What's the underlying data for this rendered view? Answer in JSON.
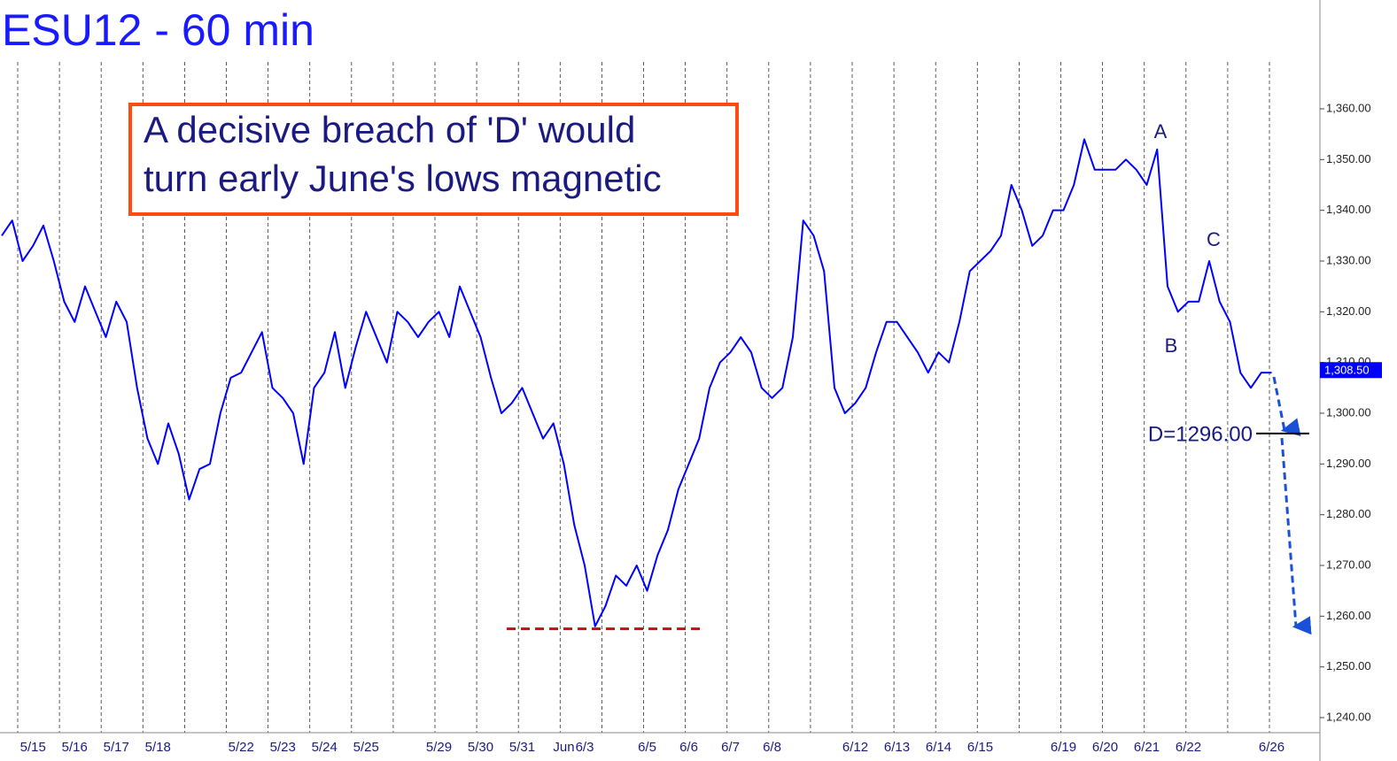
{
  "chart_data": {
    "type": "line",
    "title": "ESU12 - 60 min",
    "annotation": [
      "A decisive breach of 'D' would",
      "turn early June's lows magnetic"
    ],
    "point_labels": [
      "A",
      "B",
      "C"
    ],
    "d_level": {
      "value": 1296,
      "label": "D=1296.00"
    },
    "support_level": 1257.5,
    "last_price": {
      "value": 1308.5,
      "label": "1,308.50"
    },
    "categories": [
      null,
      null,
      null,
      "5/15",
      null,
      null,
      null,
      "5/16",
      null,
      null,
      null,
      "5/17",
      null,
      null,
      null,
      "5/18",
      null,
      null,
      null,
      null,
      null,
      null,
      null,
      "5/22",
      null,
      null,
      null,
      "5/23",
      null,
      null,
      null,
      "5/24",
      null,
      null,
      null,
      "5/25",
      null,
      null,
      null,
      null,
      null,
      null,
      "5/29",
      null,
      null,
      null,
      "5/30",
      null,
      null,
      null,
      "5/31",
      null,
      null,
      null,
      "Jun",
      null,
      "6/3",
      null,
      null,
      null,
      null,
      null,
      "6/5",
      null,
      null,
      null,
      "6/6",
      null,
      null,
      null,
      "6/7",
      null,
      null,
      null,
      "6/8",
      null,
      null,
      null,
      null,
      null,
      null,
      null,
      "6/12",
      null,
      null,
      null,
      "6/13",
      null,
      null,
      null,
      "6/14",
      null,
      null,
      null,
      "6/15",
      null,
      null,
      null,
      null,
      null,
      null,
      null,
      "6/19",
      null,
      null,
      null,
      "6/20",
      null,
      null,
      null,
      "6/21",
      null,
      null,
      null,
      "6/22",
      null,
      null,
      null,
      null,
      null,
      null,
      null,
      "6/26"
    ],
    "series": [
      {
        "name": "ESU12",
        "color": "#0000ff",
        "values": [
          1335,
          1338,
          1330,
          1333,
          1337,
          1330,
          1322,
          1318,
          1325,
          1320,
          1315,
          1322,
          1318,
          1305,
          1295,
          1290,
          1298,
          1292,
          1283,
          1289,
          1290,
          1300,
          1307,
          1308,
          1312,
          1316,
          1305,
          1303,
          1300,
          1290,
          1305,
          1308,
          1316,
          1305,
          1313,
          1320,
          1315,
          1310,
          1320,
          1318,
          1315,
          1318,
          1320,
          1315,
          1325,
          1320,
          1315,
          1307,
          1300,
          1302,
          1305,
          1300,
          1295,
          1298,
          1290,
          1278,
          1270,
          1258,
          1262,
          1268,
          1266,
          1270,
          1265,
          1272,
          1277,
          1285,
          1290,
          1295,
          1305,
          1310,
          1312,
          1315,
          1312,
          1305,
          1303,
          1305,
          1315,
          1338,
          1335,
          1328,
          1305,
          1300,
          1302,
          1305,
          1312,
          1318,
          1318,
          1315,
          1312,
          1308,
          1312,
          1310,
          1318,
          1328,
          1330,
          1332,
          1335,
          1345,
          1340,
          1333,
          1335,
          1340,
          1340,
          1345,
          1354,
          1348,
          1348,
          1348,
          1350,
          1348,
          1345,
          1352,
          1325,
          1320,
          1322,
          1322,
          1330,
          1322,
          1318,
          1308,
          1305,
          1308,
          1308
        ]
      }
    ],
    "ylim": [
      1236,
      1372
    ],
    "yticks": [
      {
        "value": 1240,
        "label": "1,240.00"
      },
      {
        "value": 1250,
        "label": "1,250.00"
      },
      {
        "value": 1260,
        "label": "1,260.00"
      },
      {
        "value": 1270,
        "label": "1,270.00"
      },
      {
        "value": 1280,
        "label": "1,280.00"
      },
      {
        "value": 1290,
        "label": "1,290.00"
      },
      {
        "value": 1300,
        "label": "1,300.00"
      },
      {
        "value": 1310,
        "label": "1,310.00"
      },
      {
        "value": 1320,
        "label": "1,320.00"
      },
      {
        "value": 1330,
        "label": "1,330.00"
      },
      {
        "value": 1340,
        "label": "1,340.00"
      },
      {
        "value": 1350,
        "label": "1,350.00"
      },
      {
        "value": 1360,
        "label": "1,360.00"
      }
    ]
  }
}
